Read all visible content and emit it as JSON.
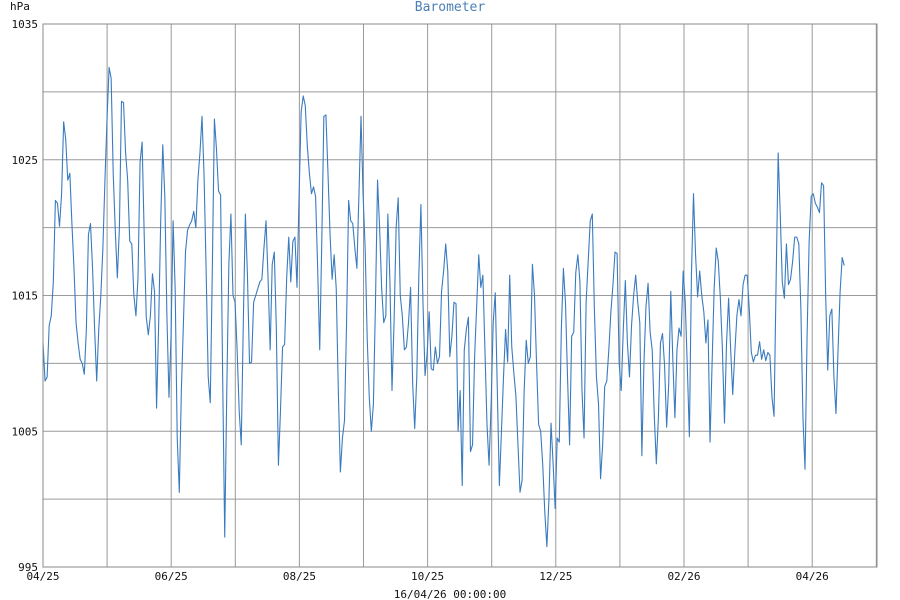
{
  "chart_data": {
    "type": "line",
    "title": "Barometer",
    "ylabel": "hPa",
    "timestamp": "16/04/26 00:00:00",
    "ylim": [
      995,
      1035
    ],
    "yticks": [
      995,
      1005,
      1015,
      1025,
      1035
    ],
    "xtick_labels": [
      "04/25",
      "06/25",
      "08/25",
      "10/25",
      "12/25",
      "02/26",
      "04/26"
    ],
    "x_months_total": 13,
    "x_last_month_fraction": 0.5,
    "grid": true,
    "colors": {
      "line": "#3a7bbf",
      "title": "#4a7fb5"
    },
    "series": [
      {
        "values": [
          1011.5,
          1008.7,
          1009,
          1012.8,
          1013.5,
          1016,
          1022,
          1021.8,
          1020.1,
          1022.5,
          1027.8,
          1026.5,
          1023.5,
          1024,
          1020.3,
          1017,
          1013,
          1011.5,
          1010.3,
          1010,
          1009.2,
          1012.5,
          1019.5,
          1020.3,
          1017,
          1012.5,
          1008.7,
          1012.5,
          1015,
          1018.5,
          1023.5,
          1028,
          1031.8,
          1031,
          1024,
          1019.8,
          1016.3,
          1020,
          1029.3,
          1029.2,
          1025.5,
          1023.5,
          1019,
          1018.8,
          1015,
          1013.5,
          1016.3,
          1024.8,
          1026.3,
          1019.5,
          1013.4,
          1012.1,
          1013.5,
          1016.6,
          1015.3,
          1006.7,
          1012.8,
          1020.5,
          1026.1,
          1022.2,
          1013.5,
          1007.5,
          1012,
          1020.5,
          1015.5,
          1004.5,
          1000.5,
          1008,
          1013,
          1018.2,
          1019.8,
          1020.2,
          1020.5,
          1021.2,
          1020,
          1023.5,
          1025.5,
          1028.2,
          1023.8,
          1016.8,
          1009,
          1007.1,
          1017,
          1028,
          1025.8,
          1022.7,
          1022.4,
          1009,
          997.2,
          1008,
          1017.3,
          1021,
          1015,
          1014.5,
          1011,
          1006.5,
          1004,
          1013,
          1021,
          1016.5,
          1010,
          1010.1,
          1014.5,
          1015,
          1015.5,
          1016,
          1016.2,
          1018.5,
          1020.5,
          1016.2,
          1011,
          1017.3,
          1018.2,
          1012.5,
          1002.5,
          1006.5,
          1011.2,
          1011.4,
          1016.3,
          1019.3,
          1016,
          1019,
          1019.3,
          1015.6,
          1022.3,
          1028.5,
          1029.7,
          1029,
          1026,
          1024,
          1022.5,
          1023,
          1022.3,
          1017,
          1011,
          1019,
          1028.2,
          1028.3,
          1024,
          1019.5,
          1016.2,
          1018,
          1015.5,
          1008,
          1002,
          1004.5,
          1005.8,
          1013,
          1022,
          1020.5,
          1020.3,
          1018.5,
          1017,
          1022.5,
          1028.2,
          1022.4,
          1018.5,
          1011.8,
          1007.5,
          1005,
          1007,
          1014.5,
          1023.5,
          1020,
          1015.5,
          1013,
          1013.5,
          1021,
          1016,
          1008,
          1013,
          1020,
          1022.2,
          1015,
          1013.5,
          1011,
          1011.2,
          1013,
          1015.6,
          1008.5,
          1005.2,
          1009,
          1016.5,
          1021.7,
          1014.5,
          1009.1,
          1010.7,
          1013.8,
          1009.6,
          1009.5,
          1011.2,
          1010,
          1010.5,
          1015.3,
          1016.8,
          1018.8,
          1016.8,
          1010.5,
          1012,
          1014.5,
          1014.4,
          1005,
          1008,
          1001,
          1011,
          1012.5,
          1013.4,
          1003.5,
          1004,
          1010.5,
          1014.2,
          1018,
          1015.6,
          1016.5,
          1011,
          1005.5,
          1002.5,
          1007,
          1013,
          1015.2,
          1008,
          1001,
          1005,
          1009,
          1012.5,
          1010.1,
          1016.5,
          1011.2,
          1009.3,
          1007.6,
          1004,
          1000.5,
          1001.4,
          1008,
          1011.7,
          1010,
          1010.5,
          1017.3,
          1015,
          1010,
          1005.5,
          1005,
          1002.5,
          999,
          996.5,
          1000,
          1005.6,
          1002.7,
          999.3,
          1004.5,
          1004.2,
          1012.5,
          1017,
          1014.5,
          1009,
          1004,
          1012,
          1012.3,
          1016.7,
          1018,
          1016,
          1008,
          1004.5,
          1014.5,
          1017.5,
          1020.5,
          1021,
          1014,
          1009,
          1007,
          1001.5,
          1004,
          1008.3,
          1008.7,
          1011,
          1013.8,
          1015.8,
          1018.2,
          1018.1,
          1010,
          1008,
          1012.5,
          1016.1,
          1011.5,
          1009,
          1012.8,
          1015,
          1016.5,
          1014.5,
          1013,
          1003.2,
          1010,
          1014.2,
          1015.9,
          1012.3,
          1011,
          1006.2,
          1002.6,
          1006,
          1011.5,
          1012.2,
          1009.8,
          1005.3,
          1008.5,
          1015.3,
          1010.2,
          1006,
          1011,
          1012.6,
          1012,
          1016.8,
          1014.5,
          1009.8,
          1004.6,
          1016.5,
          1022.5,
          1018,
          1014.9,
          1016.8,
          1015,
          1013.8,
          1011.5,
          1013.2,
          1004.2,
          1010,
          1015.5,
          1018.5,
          1017.5,
          1014.8,
          1011,
          1005.6,
          1011.5,
          1014.8,
          1011,
          1007.7,
          1010.8,
          1013.5,
          1014.7,
          1013.5,
          1015.8,
          1016.5,
          1016.5,
          1014,
          1010.8,
          1010.1,
          1010.6,
          1010.6,
          1011.6,
          1010.3,
          1011,
          1010.2,
          1010.8,
          1010.6,
          1007.5,
          1006.1,
          1016,
          1025.5,
          1021,
          1016,
          1014.8,
          1018.8,
          1015.8,
          1016.2,
          1017.5,
          1019.3,
          1019.3,
          1018.8,
          1014,
          1006,
          1002.2,
          1012,
          1019,
          1022.3,
          1022.5,
          1021.8,
          1021.5,
          1021.1,
          1023.3,
          1023.1,
          1015,
          1009.5,
          1013.5,
          1014,
          1009,
          1006.3,
          1011,
          1015.3,
          1017.8,
          1017.2
        ]
      }
    ]
  }
}
